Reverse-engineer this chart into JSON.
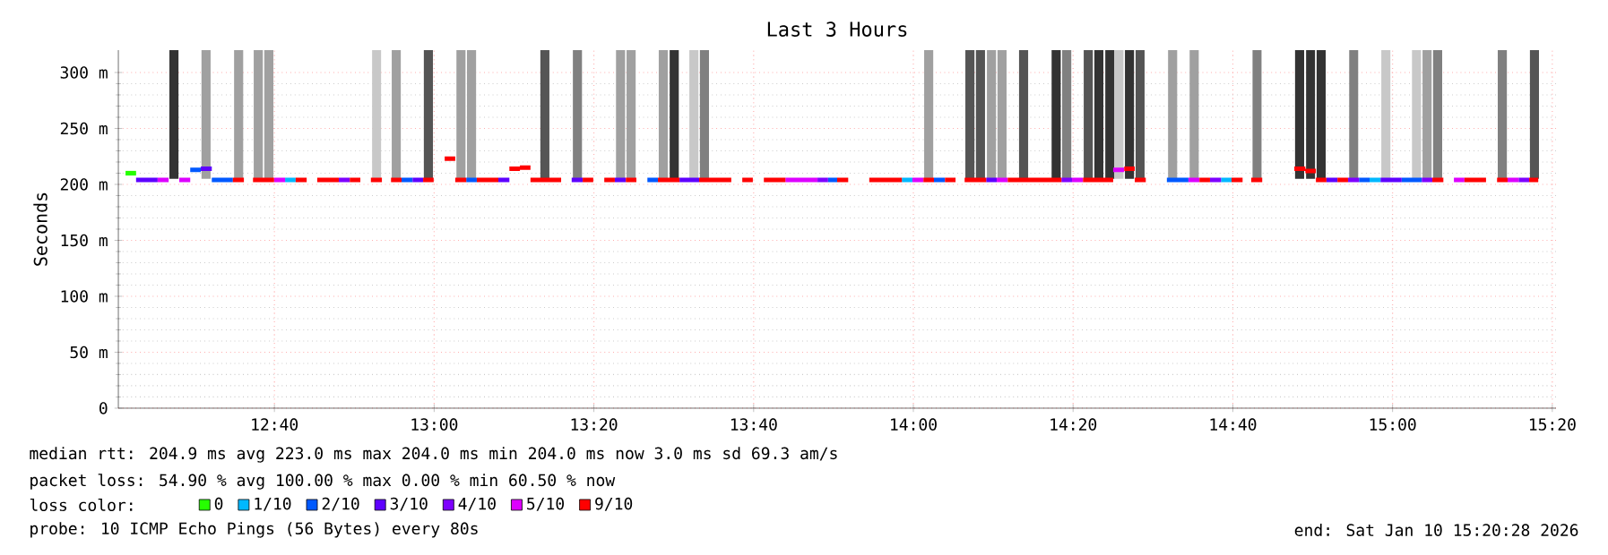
{
  "chart_data": {
    "type": "line",
    "title": "Last 3 Hours",
    "ylabel": "Seconds",
    "legend_title": "loss color:",
    "legend": "bottom",
    "grid": true,
    "xlim": [
      12.341,
      15.341
    ],
    "ylim": [
      0,
      320
    ],
    "xticks": [
      {
        "value": 12.6667,
        "label": "12:40"
      },
      {
        "value": 13,
        "label": "13:00"
      },
      {
        "value": 13.3333,
        "label": "13:20"
      },
      {
        "value": 13.6667,
        "label": "13:40"
      },
      {
        "value": 14,
        "label": "14:00"
      },
      {
        "value": 14.3333,
        "label": "14:20"
      },
      {
        "value": 14.6667,
        "label": "14:40"
      },
      {
        "value": 15,
        "label": "15:00"
      },
      {
        "value": 15.3333,
        "label": "15:20"
      }
    ],
    "yticks": [
      0,
      {
        "value": 50,
        "label": "50 m"
      },
      {
        "value": 100,
        "label": "100 m"
      },
      {
        "value": 150,
        "label": "150 m"
      },
      {
        "value": 200,
        "label": "200 m"
      },
      {
        "value": 250,
        "label": "250 m"
      },
      {
        "value": 300,
        "label": "300 m"
      }
    ],
    "annotations": [
      "median rtt: 204.9 ms avg 223.0 ms max 204.0 ms min 204.0 ms now 3.0 ms sd 69.3 am/s",
      "packet loss: 54.90 % avg 100.00 % max 0.00 % min 60.50 % now",
      "probe: 10 ICMP Echo Pings (56 Bytes) every 80s",
      "end: Sat Jan 10 15:20:28 2026"
    ],
    "series": [
      {
        "type": "bar",
        "x": [
          12.457,
          12.524,
          12.592,
          12.633,
          12.655,
          12.88,
          12.921,
          12.988,
          13.056,
          13.078,
          13.231,
          13.299,
          13.389,
          13.411,
          13.478,
          13.501,
          13.542,
          13.564,
          14.032,
          14.118,
          14.14,
          14.163,
          14.185,
          14.23,
          14.298,
          14.32,
          14.365,
          14.387,
          14.41,
          14.429,
          14.451,
          14.473,
          14.541,
          14.586,
          14.717,
          14.806,
          14.829,
          14.851,
          14.919,
          14.986,
          15.05,
          15.072,
          15.094,
          15.229,
          15.296
        ],
        "base": [
          205,
          205,
          205,
          205,
          205,
          205,
          205,
          205,
          205,
          205,
          205,
          205,
          205,
          205,
          205,
          205,
          205,
          205,
          205,
          205,
          205,
          205,
          205,
          205,
          205,
          205,
          205,
          205,
          205,
          205,
          205,
          205,
          205,
          205,
          205,
          205,
          205,
          205,
          205,
          205,
          205,
          205,
          205,
          205,
          205
        ],
        "values": [
          115,
          115,
          115,
          115,
          115,
          115,
          115,
          115,
          115,
          115,
          115,
          115,
          115,
          115,
          115,
          115,
          115,
          115,
          115,
          115,
          115,
          115,
          115,
          115,
          115,
          115,
          115,
          115,
          115,
          115,
          115,
          115,
          115,
          115,
          115,
          115,
          115,
          115,
          115,
          115,
          115,
          115,
          115,
          115,
          115
        ],
        "colors": [
          "#333333",
          "#a0a0a0",
          "#a0a0a0",
          "#a0a0a0",
          "#a0a0a0",
          "#c8c8c8",
          "#a0a0a0",
          "#555555",
          "#a0a0a0",
          "#a0a0a0",
          "#555555",
          "#808080",
          "#a0a0a0",
          "#a0a0a0",
          "#a0a0a0",
          "#333333",
          "#c8c8c8",
          "#808080",
          "#a0a0a0",
          "#555555",
          "#555555",
          "#a0a0a0",
          "#a0a0a0",
          "#555555",
          "#333333",
          "#808080",
          "#555555",
          "#333333",
          "#333333",
          "#c8c8c8",
          "#333333",
          "#555555",
          "#a0a0a0",
          "#a0a0a0",
          "#808080",
          "#333333",
          "#333333",
          "#333333",
          "#808080",
          "#c8c8c8",
          "#c8c8c8",
          "#a0a0a0",
          "#808080",
          "#808080",
          "#555555"
        ]
      },
      {
        "name": "0",
        "color": "#26ff00",
        "x": [
          12.356,
          12.378
        ],
        "values": [
          210,
          210
        ]
      },
      {
        "name": "1/10",
        "color": "#00b8ff",
        "x": [
          12.689,
          12.711,
          null,
          13.976,
          13.998,
          null,
          14.642,
          14.664,
          null,
          14.952,
          14.975
        ],
        "values": [
          204,
          204,
          null,
          204,
          204,
          null,
          204,
          204,
          null,
          204,
          204
        ]
      },
      {
        "name": "2/10",
        "color": "#0059ff",
        "x": [
          12.491,
          12.513,
          null,
          12.536,
          12.58,
          null,
          12.932,
          12.955,
          null,
          13.067,
          13.089,
          null,
          13.445,
          13.467,
          null,
          13.822,
          13.841,
          null,
          14.043,
          14.066,
          null,
          14.529,
          14.574,
          null,
          14.93,
          14.952,
          null,
          15.019,
          15.061
        ],
        "values": [
          213,
          213,
          null,
          204,
          204,
          null,
          204,
          204,
          null,
          204,
          204,
          null,
          204,
          204,
          null,
          204,
          204,
          null,
          204,
          204,
          null,
          204,
          204,
          null,
          204,
          204,
          null,
          204,
          204
        ]
      },
      {
        "name": "3/10",
        "color": "#5e00ff",
        "x": [
          12.378,
          12.423,
          null,
          12.513,
          12.536,
          null,
          12.955,
          12.977,
          null,
          13.134,
          13.157,
          null,
          13.287,
          13.31,
          null,
          13.377,
          13.4,
          null,
          13.512,
          13.553,
          null,
          14.152,
          14.174,
          null,
          14.862,
          14.885,
          null,
          14.975,
          15.019
        ],
        "values": [
          204,
          204,
          null,
          214,
          214,
          null,
          204,
          204,
          null,
          204,
          204,
          null,
          204,
          204,
          null,
          204,
          204,
          null,
          204,
          204,
          null,
          204,
          204,
          null,
          204,
          204,
          null,
          204,
          204
        ]
      },
      {
        "name": "4/10",
        "color": "#7e00ff",
        "x": [
          12.801,
          12.824,
          null,
          13.8,
          13.822,
          null,
          14.309,
          14.331,
          null,
          14.619,
          14.642,
          null,
          14.907,
          14.93,
          null,
          15.061,
          15.083,
          null,
          15.263,
          15.285
        ],
        "values": [
          204,
          204,
          null,
          204,
          204,
          null,
          204,
          204,
          null,
          204,
          204,
          null,
          204,
          204,
          null,
          204,
          204,
          null,
          204,
          204
        ]
      },
      {
        "name": "5/10",
        "color": "#dd00ff",
        "x": [
          12.423,
          12.446,
          null,
          12.468,
          12.491,
          null,
          12.666,
          12.689,
          null,
          13.733,
          13.8,
          null,
          13.998,
          14.021,
          null,
          14.174,
          14.197,
          null,
          14.331,
          14.354,
          null,
          14.417,
          14.44,
          null,
          14.574,
          14.597,
          null,
          15.128,
          15.15,
          null,
          15.24,
          15.263
        ],
        "values": [
          204,
          204,
          null,
          204,
          204,
          null,
          204,
          204,
          null,
          204,
          204,
          null,
          204,
          204,
          null,
          204,
          204,
          null,
          204,
          204,
          null,
          213,
          213,
          null,
          204,
          204,
          null,
          204,
          204,
          null,
          204,
          204
        ]
      },
      {
        "name": "9/10",
        "color": "#ff0000",
        "x": [
          12.58,
          12.603,
          null,
          12.622,
          12.666,
          null,
          12.711,
          12.734,
          null,
          12.756,
          12.801,
          null,
          12.824,
          12.846,
          null,
          12.868,
          12.891,
          null,
          12.91,
          12.932,
          null,
          12.977,
          12.999,
          null,
          13.022,
          13.044,
          null,
          13.044,
          13.067,
          null,
          13.089,
          13.134,
          null,
          13.157,
          13.179,
          null,
          13.179,
          13.201,
          null,
          13.201,
          13.265,
          null,
          13.31,
          13.332,
          null,
          13.355,
          13.377,
          null,
          13.4,
          13.422,
          null,
          13.467,
          13.512,
          null,
          13.553,
          13.62,
          null,
          13.643,
          13.665,
          null,
          13.688,
          13.733,
          null,
          13.841,
          13.864,
          null,
          13.908,
          13.976,
          null,
          14.021,
          14.043,
          null,
          14.066,
          14.088,
          null,
          14.107,
          14.152,
          null,
          14.197,
          14.309,
          null,
          14.354,
          14.417,
          null,
          14.44,
          14.462,
          null,
          14.462,
          14.485,
          null,
          14.597,
          14.619,
          null,
          14.664,
          14.687,
          null,
          14.705,
          14.728,
          null,
          14.795,
          14.818,
          null,
          14.818,
          14.84,
          null,
          14.84,
          14.862,
          null,
          14.885,
          14.907,
          null,
          15.083,
          15.106,
          null,
          15.15,
          15.195,
          null,
          15.218,
          15.24,
          null,
          15.285,
          15.304
        ],
        "values": [
          204,
          204,
          null,
          204,
          204,
          null,
          204,
          204,
          null,
          204,
          204,
          null,
          204,
          204,
          null,
          204,
          204,
          null,
          204,
          204,
          null,
          204,
          204,
          null,
          223,
          223,
          null,
          204,
          204,
          null,
          204,
          204,
          null,
          214,
          214,
          null,
          215,
          215,
          null,
          204,
          204,
          null,
          204,
          204,
          null,
          204,
          204,
          null,
          204,
          204,
          null,
          204,
          204,
          null,
          204,
          204,
          null,
          204,
          204,
          null,
          204,
          204,
          null,
          204,
          204,
          null,
          204,
          204,
          null,
          204,
          204,
          null,
          204,
          204,
          null,
          204,
          204,
          null,
          204,
          204,
          null,
          204,
          204,
          null,
          214,
          214,
          null,
          204,
          204,
          null,
          204,
          204,
          null,
          204,
          204,
          null,
          204,
          204,
          null,
          214,
          214,
          null,
          212,
          212,
          null,
          204,
          204,
          null,
          204,
          204,
          null,
          204,
          204,
          null,
          204,
          204,
          null,
          204,
          204,
          null,
          204,
          204
        ]
      }
    ]
  }
}
